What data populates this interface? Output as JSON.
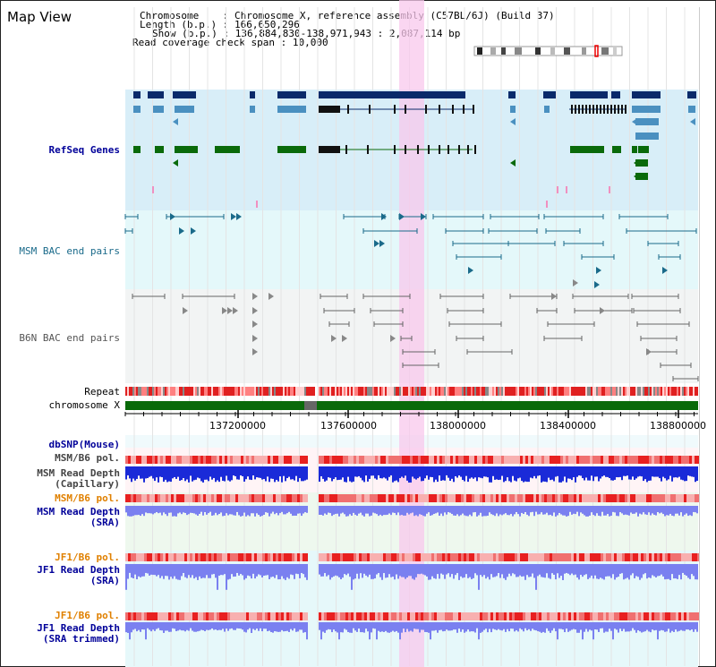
{
  "page_title": "Map View",
  "info": {
    "chromosome_label": "Chromosome",
    "chromosome_value": "Chromosome X, reference assembly (C57BL/6J) (Build 37)",
    "length_label": "Length (b.p.)",
    "length_value": "166,650,296",
    "show_label": "Show (b.p.)",
    "show_value": "136,884,830-138,971,943 : 2,087,114 bp",
    "read_label": "Read coverage check span",
    "read_value": "10,000"
  },
  "tracks": {
    "refseq": "RefSeq Genes",
    "msm_bac": "MSM BAC end pairs",
    "b6n_bac": "B6N BAC end pairs",
    "repeat": "Repeat",
    "chromosome": "chromosome X",
    "dbsnp": "dbSNP(Mouse)",
    "msm_b6_pol_1": "MSM/B6 pol.",
    "msm_read_depth_cap": "MSM Read Depth\n(Capillary)",
    "msm_b6_pol_2": "MSM/B6 pol.",
    "msm_read_depth_sra": "MSM Read Depth\n(SRA)",
    "jf1_b6_pol_1": "JF1/B6 pol.",
    "jf1_read_depth_sra": "JF1 Read Depth\n(SRA)",
    "jf1_b6_pol_2": "JF1/B6 pol.",
    "jf1_read_depth_trim": "JF1 Read Depth\n(SRA trimmed)"
  },
  "ruler": {
    "ticks": [
      "137200000",
      "137600000",
      "138000000",
      "138400000",
      "138800000"
    ]
  },
  "colors": {
    "refseq_bg": "#d8eef8",
    "msm_bg": "#e4f8fa",
    "b6n_bg": "#f2f4f4",
    "highlight": "#f8c8ec",
    "refseq_dark": "#0a2a6a",
    "refseq_mid": "#4a90c0",
    "refseq_green": "#0a6a0a",
    "msm_color": "#1a6a8a",
    "b6n_color": "#666666",
    "dbsnp_label": "#000099",
    "pol_label_msm": "#333333",
    "pol_label_orange": "#e08000",
    "depth_blue": "#1a2ad8",
    "depth_light": "#7a80f0"
  }
}
